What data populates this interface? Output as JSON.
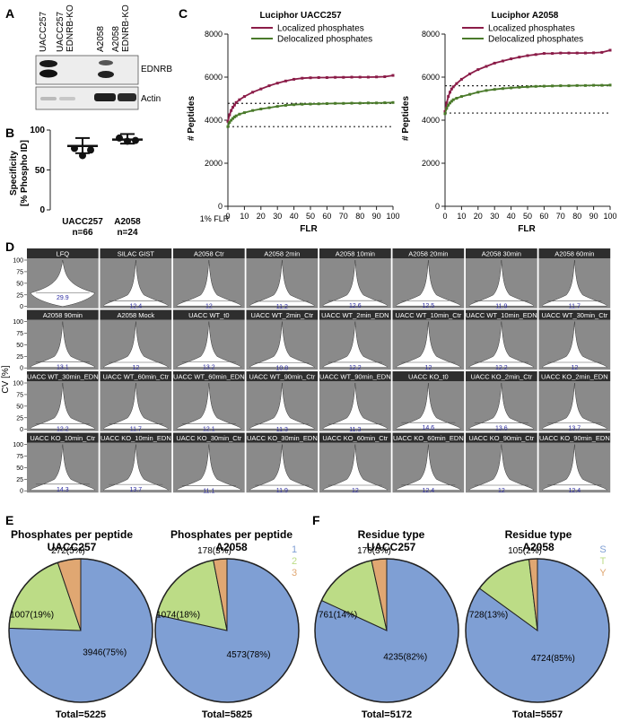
{
  "panel_letters": [
    "A",
    "B",
    "C",
    "D",
    "E",
    "F"
  ],
  "panelA": {
    "lanes": [
      "UACC257",
      "UACC257 EDNRB-KO",
      "A2058",
      "A2058 EDNRB-KO"
    ],
    "bands": [
      "EDNRB",
      "Actin"
    ]
  },
  "panelB": {
    "ylabel_line1": "Specificity",
    "ylabel_line2": "[% Phospho ID]",
    "groups": [
      {
        "name": "UACC257",
        "n": "n=66",
        "mean": 80,
        "sd_low": 71,
        "sd_high": 90,
        "points": [
          77,
          75,
          68
        ]
      },
      {
        "name": "A2058",
        "n": "n=24",
        "mean": 88,
        "sd_low": 83,
        "sd_high": 95,
        "points": [
          90,
          87,
          86
        ]
      }
    ],
    "ylim": [
      0,
      100
    ],
    "yticks": [
      "0",
      "50",
      "100"
    ]
  },
  "panelC": {
    "chart_data": [
      {
        "type": "line",
        "title": "Luciphor UACC257",
        "xlabel": "FLR",
        "ylabel": "# Peptides",
        "x_extra_label": "1% FLR",
        "xlim": [
          0,
          100
        ],
        "ylim": [
          0,
          8000
        ],
        "xticks": [
          "0",
          "10",
          "20",
          "30",
          "40",
          "50",
          "60",
          "70",
          "80",
          "90",
          "100"
        ],
        "yticks": [
          "0",
          "2000",
          "4000",
          "6000",
          "8000"
        ],
        "x": [
          0,
          1,
          2,
          3,
          4,
          5,
          7,
          10,
          15,
          20,
          25,
          30,
          35,
          40,
          45,
          50,
          55,
          60,
          65,
          70,
          75,
          80,
          85,
          90,
          95,
          100
        ],
        "series": [
          {
            "name": "Localized phosphates",
            "color": "#8b1c48",
            "values": [
              3950,
              4250,
              4450,
              4600,
              4700,
              4820,
              4950,
              5100,
              5300,
              5450,
              5600,
              5720,
              5820,
              5900,
              5950,
              5970,
              5980,
              5980,
              5990,
              5990,
              6000,
              6000,
              6000,
              6010,
              6020,
              6080
            ]
          },
          {
            "name": "Delocalized phosphates",
            "color": "#4a7a2a",
            "values": [
              3700,
              3900,
              4000,
              4080,
              4150,
              4200,
              4280,
              4350,
              4450,
              4520,
              4580,
              4640,
              4690,
              4720,
              4740,
              4750,
              4760,
              4770,
              4780,
              4780,
              4790,
              4790,
              4800,
              4800,
              4810,
              4820
            ]
          }
        ],
        "ref_lines": [
          4780,
          3700
        ]
      },
      {
        "type": "line",
        "title": "Luciphor A2058",
        "xlabel": "FLR",
        "ylabel": "# Peptides",
        "x_extra_label": "1% FLR",
        "xlim": [
          0,
          100
        ],
        "ylim": [
          0,
          8000
        ],
        "xticks": [
          "0",
          "10",
          "20",
          "30",
          "40",
          "50",
          "60",
          "70",
          "80",
          "90",
          "100"
        ],
        "yticks": [
          "0",
          "2000",
          "4000",
          "6000",
          "8000"
        ],
        "x": [
          0,
          1,
          2,
          3,
          4,
          5,
          7,
          10,
          15,
          20,
          25,
          30,
          35,
          40,
          45,
          50,
          55,
          60,
          65,
          70,
          75,
          80,
          85,
          90,
          95,
          100
        ],
        "series": [
          {
            "name": "Localized phosphates",
            "color": "#8b1c48",
            "values": [
              4400,
              4800,
              5100,
              5300,
              5450,
              5550,
              5700,
              5900,
              6150,
              6350,
              6500,
              6650,
              6750,
              6850,
              6930,
              7000,
              7050,
              7100,
              7100,
              7120,
              7120,
              7120,
              7120,
              7130,
              7150,
              7250
            ]
          },
          {
            "name": "Delocalized phosphates",
            "color": "#4a7a2a",
            "values": [
              4300,
              4550,
              4700,
              4800,
              4880,
              4950,
              5020,
              5100,
              5200,
              5300,
              5380,
              5430,
              5470,
              5500,
              5530,
              5550,
              5570,
              5580,
              5590,
              5600,
              5600,
              5610,
              5610,
              5620,
              5620,
              5630
            ]
          }
        ],
        "ref_lines": [
          5600,
          4330
        ]
      }
    ]
  },
  "panelD": {
    "ylabel": "CV [%]",
    "yticks": [
      "0",
      "25",
      "50",
      "75",
      "100"
    ],
    "cells": [
      {
        "label": "LFQ",
        "value": "29.9"
      },
      {
        "label": "SILAC GIST",
        "value": "12.4"
      },
      {
        "label": "A2058 Ctr",
        "value": "12"
      },
      {
        "label": "A2058 2min",
        "value": "11.2"
      },
      {
        "label": "A2058 10min",
        "value": "12.6"
      },
      {
        "label": "A2058 20min",
        "value": "12.5"
      },
      {
        "label": "A2058 30min",
        "value": "11.9"
      },
      {
        "label": "A2058 60min",
        "value": "11.7"
      },
      {
        "label": "A2058 90min",
        "value": "13.1"
      },
      {
        "label": "A2058 Mock",
        "value": "12"
      },
      {
        "label": "UACC WT_t0",
        "value": "13.2"
      },
      {
        "label": "UACC WT_2min_Ctr",
        "value": "10.8"
      },
      {
        "label": "UACC WT_2min_EDN",
        "value": "12.2"
      },
      {
        "label": "UACC WT_10min_Ctr",
        "value": "12"
      },
      {
        "label": "UACC WT_10min_EDN",
        "value": "12.2"
      },
      {
        "label": "UACC WT_30min_Ctr",
        "value": "12"
      },
      {
        "label": "UACC WT_30min_EDN",
        "value": "12.2"
      },
      {
        "label": "UACC WT_60min_Ctr",
        "value": "11.7"
      },
      {
        "label": "UACC WT_60min_EDN",
        "value": "12.1"
      },
      {
        "label": "UACC WT_90min_Ctr",
        "value": "11.3"
      },
      {
        "label": "UACC WT_90min_EDN",
        "value": "11.3"
      },
      {
        "label": "UACC KO_t0",
        "value": "14.6"
      },
      {
        "label": "UACC KO_2min_Ctr",
        "value": "13.6"
      },
      {
        "label": "UACC KO_2min_EDN",
        "value": "13.7"
      },
      {
        "label": "UACC KO_10min_Ctr",
        "value": "14.3"
      },
      {
        "label": "UACC KO_10min_EDN",
        "value": "13.7"
      },
      {
        "label": "UACC KO_30min_Ctr",
        "value": "11.1"
      },
      {
        "label": "UACC KO_30min_EDN",
        "value": "11.9"
      },
      {
        "label": "UACC KO_60min_Ctr",
        "value": "12"
      },
      {
        "label": "UACC KO_60min_EDN",
        "value": "12.4"
      },
      {
        "label": "UACC KO_90min_Ctr",
        "value": "12"
      },
      {
        "label": "UACC KO_90min_EDN",
        "value": "12.4"
      }
    ]
  },
  "panelE": {
    "legend": [
      "1",
      "2",
      "3"
    ],
    "colors": [
      "#7f9fd4",
      "#bcdc86",
      "#e0a772"
    ],
    "pies": [
      {
        "title1": "Phosphates per peptide",
        "title2": "UACC257",
        "values": [
          3946,
          1007,
          272
        ],
        "labels": [
          "3946(75%)",
          "1007(19%)",
          "272(5%)"
        ],
        "total": "Total=5225"
      },
      {
        "title1": "Phosphates per peptide",
        "title2": "A2058",
        "values": [
          4573,
          1074,
          178
        ],
        "labels": [
          "4573(78%)",
          "1074(18%)",
          "178(3%)"
        ],
        "total": "Total=5825"
      }
    ]
  },
  "panelF": {
    "legend": [
      "S",
      "T",
      "Y"
    ],
    "colors": [
      "#7f9fd4",
      "#bcdc86",
      "#e0a772"
    ],
    "pies": [
      {
        "title1": "Residue type",
        "title2": "UACC257",
        "values": [
          4235,
          761,
          176
        ],
        "labels": [
          "4235(82%)",
          "761(14%)",
          "176(3%)"
        ],
        "total": "Total=5172"
      },
      {
        "title1": "Residue type",
        "title2": "A2058",
        "values": [
          4724,
          728,
          105
        ],
        "labels": [
          "4724(85%)",
          "728(13%)",
          "105(2%)"
        ],
        "total": "Total=5557"
      }
    ]
  }
}
